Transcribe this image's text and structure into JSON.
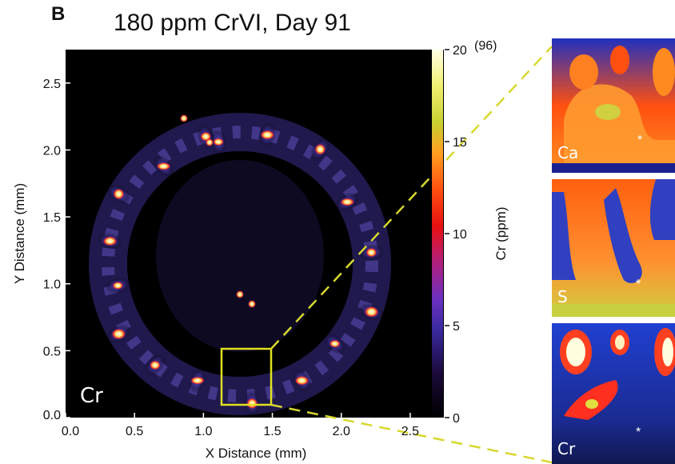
{
  "figure": {
    "panel_letter": "B",
    "title": "180 ppm CrVI, Day 91",
    "map_label": "Cr",
    "inset_labels": [
      "Ca",
      "S",
      "Cr"
    ]
  },
  "chart_data": {
    "type": "heatmap",
    "title": "180 ppm CrVI, Day 91",
    "xlabel": "X Distance (mm)",
    "ylabel": "Y Distance (mm)",
    "xlim": [
      0.0,
      2.75
    ],
    "ylim": [
      0.0,
      2.75
    ],
    "x_ticks": [
      "0.0",
      "0.5",
      "1.0",
      "1.5",
      "2.0",
      "2.5"
    ],
    "y_ticks": [
      "0.0",
      "0.5",
      "1.0",
      "1.5",
      "2.0",
      "2.5"
    ],
    "colorbar": {
      "label": "Cr (ppm)",
      "range": [
        0,
        20
      ],
      "ticks": [
        "0",
        "5",
        "10",
        "15",
        "20"
      ],
      "max_note": "(96)"
    },
    "zoom_region": {
      "x": [
        1.2,
        1.5
      ],
      "y": [
        0.3,
        0.6
      ]
    }
  }
}
